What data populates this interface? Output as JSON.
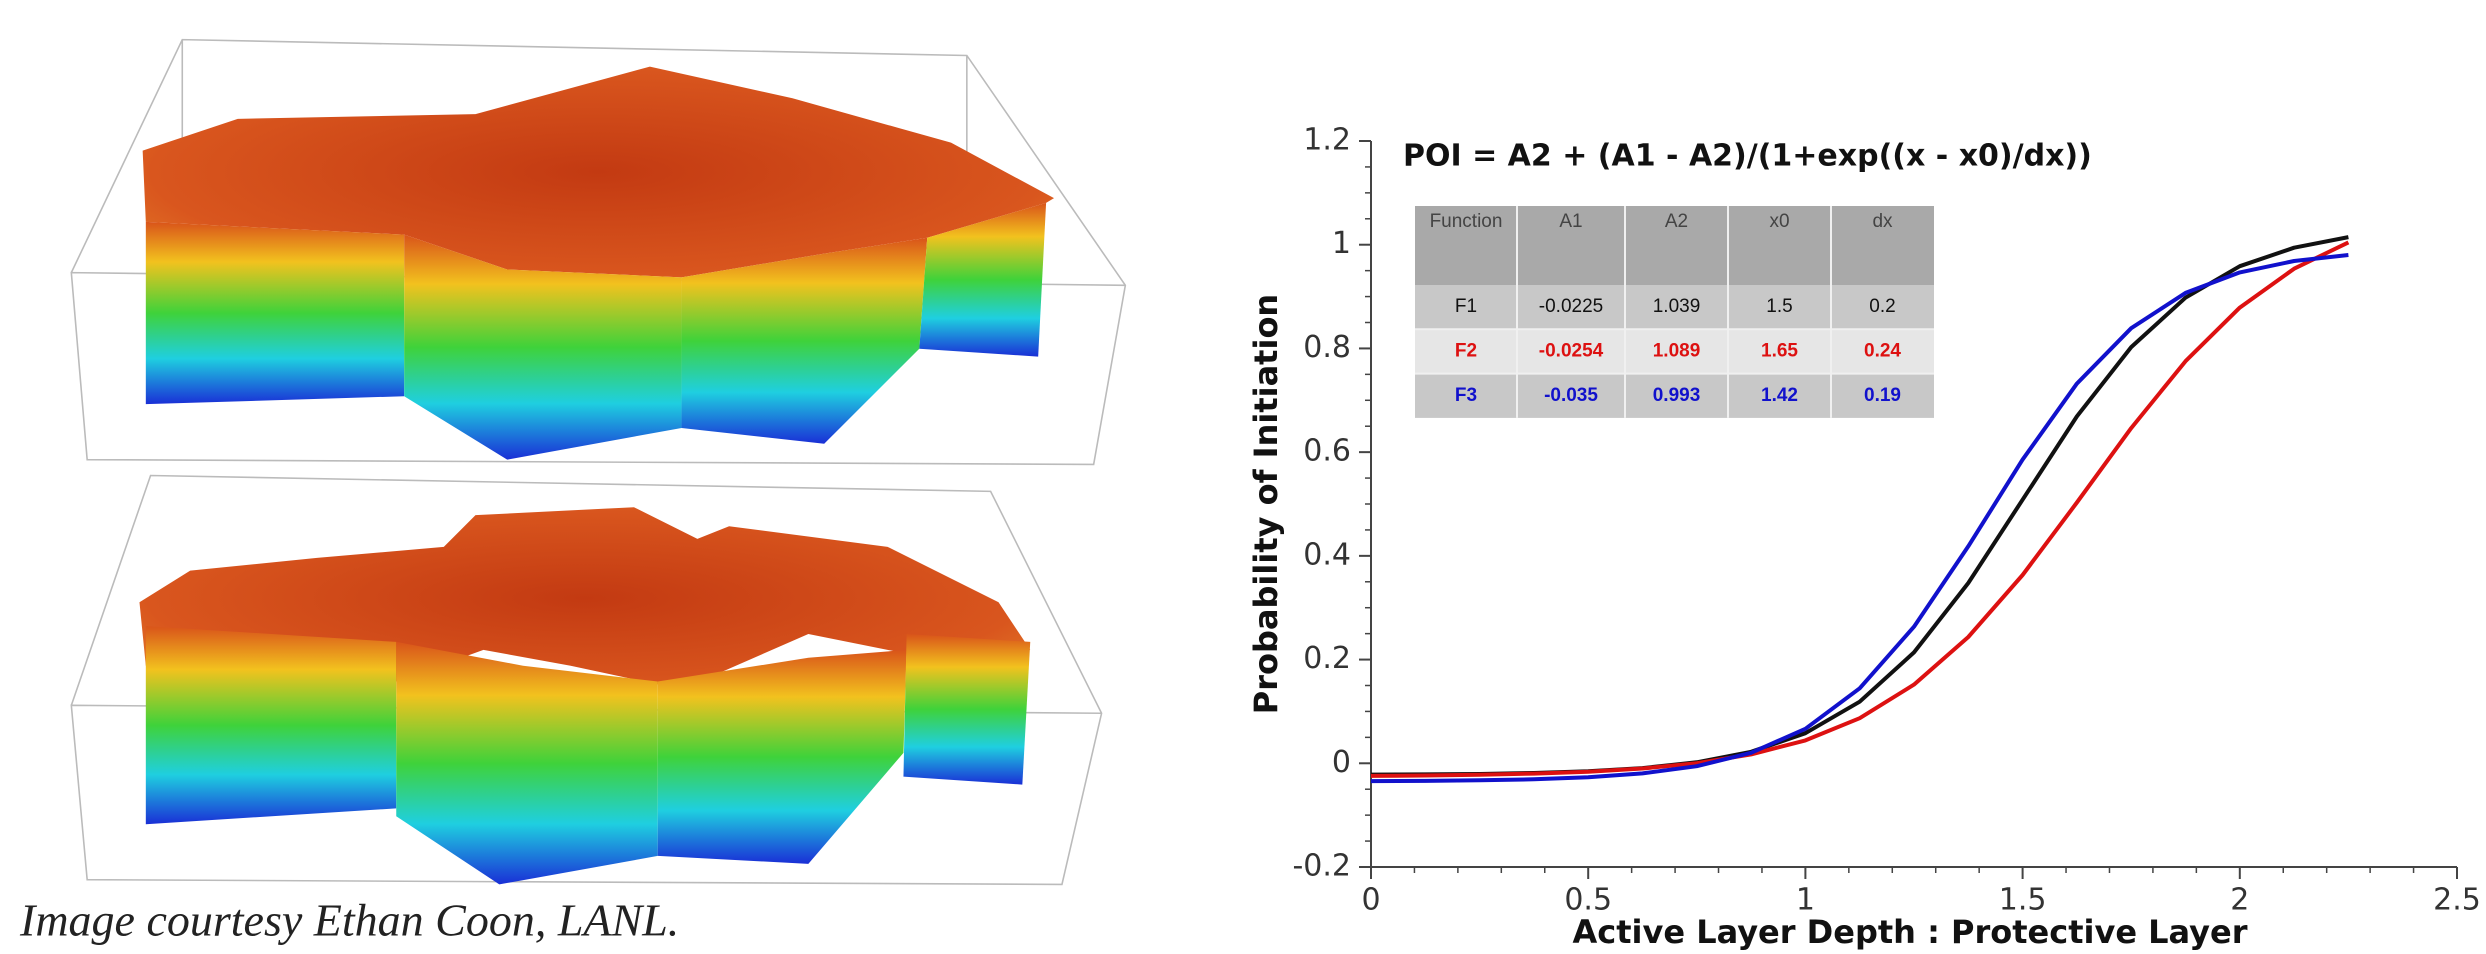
{
  "caption": "Image courtesy Ethan Coon, LANL.",
  "chart_data": {
    "type": "line",
    "title": "POI = A2 + (A1 - A2)/(1+exp((x - x0)/dx))",
    "x_label": "Active Layer Depth : Protective Layer",
    "y_label": "Probability of Initiation",
    "x": [
      0,
      0.125,
      0.25,
      0.375,
      0.5,
      0.625,
      0.75,
      0.875,
      1.0,
      1.125,
      1.25,
      1.375,
      1.5,
      1.625,
      1.75,
      1.875,
      2.0,
      2.125,
      2.25
    ],
    "series": [
      {
        "name": "F1",
        "color": "#111111",
        "values": [
          -0.0219,
          -0.0214,
          -0.0206,
          -0.0187,
          -0.0154,
          -0.0093,
          0.0019,
          0.0222,
          0.058,
          0.1187,
          0.2139,
          0.3476,
          0.5083,
          0.6689,
          0.8026,
          0.8979,
          0.9585,
          0.9943,
          1.0146
        ]
      },
      {
        "name": "F2",
        "color": "#dd1111",
        "values": [
          -0.0243,
          -0.0235,
          -0.0221,
          -0.0199,
          -0.0162,
          -0.0101,
          0.0002,
          0.0171,
          0.0442,
          0.087,
          0.1517,
          0.2435,
          0.3631,
          0.5029,
          0.6463,
          0.7754,
          0.8787,
          0.9537,
          1.0045
        ]
      },
      {
        "name": "F3",
        "color": "#1111cc",
        "values": [
          -0.0344,
          -0.0339,
          -0.0328,
          -0.0308,
          -0.027,
          -0.0196,
          -0.0056,
          0.0203,
          0.0665,
          0.1446,
          0.2633,
          0.4184,
          0.5857,
          0.7322,
          0.8391,
          0.9071,
          0.9467,
          0.9685,
          0.9801
        ]
      }
    ],
    "xlim": [
      0,
      2.5
    ],
    "ylim": [
      -0.2,
      1.2
    ],
    "xticks": [
      0,
      0.5,
      1,
      1.5,
      2,
      2.5
    ],
    "yticks": [
      -0.2,
      0,
      0.2,
      0.4,
      0.6,
      0.8,
      1,
      1.2
    ],
    "table": {
      "header": [
        "Function",
        "A1",
        "A2",
        "x0",
        "dx"
      ],
      "rows": [
        [
          "F1",
          "-0.0225",
          "1.039",
          "1.5",
          "0.2"
        ],
        [
          "F2",
          "-0.0254",
          "1.089",
          "1.65",
          "0.24"
        ],
        [
          "F3",
          "-0.035",
          "0.993",
          "1.42",
          "0.19"
        ]
      ]
    }
  }
}
